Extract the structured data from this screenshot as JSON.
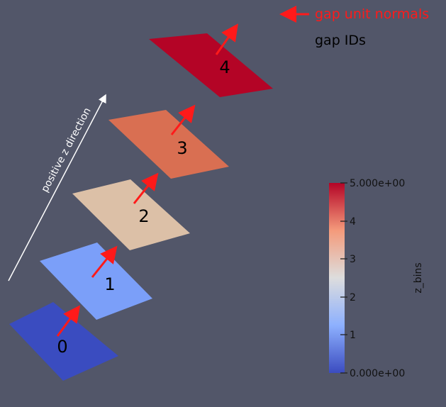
{
  "legend": {
    "normals_label": "gap unit normals",
    "ids_label": "gap IDs",
    "normals_color": "#ff1a1a",
    "ids_color": "#000000"
  },
  "direction_label": "positive z direction",
  "gaps": [
    {
      "id": "0",
      "color": "#3a4cc0"
    },
    {
      "id": "1",
      "color": "#7b9ff9"
    },
    {
      "id": "2",
      "color": "#dcc0a7"
    },
    {
      "id": "3",
      "color": "#d96f52"
    },
    {
      "id": "4",
      "color": "#b40426"
    }
  ],
  "colorbar": {
    "title": "z_bins",
    "max_label": "5.000e+00",
    "min_label": "0.000e+00",
    "ticks": [
      "4",
      "3",
      "2",
      "1"
    ],
    "colors": [
      "#3b4cc0",
      "#8db0fe",
      "#dddddd",
      "#f49a7b",
      "#b40426"
    ]
  },
  "arrow_color": "#ff1a1a"
}
